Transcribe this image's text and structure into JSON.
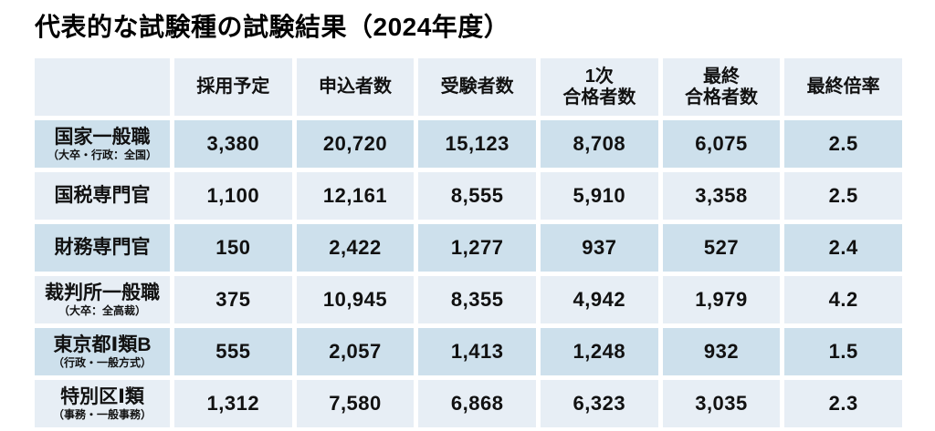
{
  "title": "代表的な試験種の試験結果（2024年度）",
  "colors": {
    "row_dark": "#cde0ec",
    "row_light": "#e7eef5",
    "gap": "#ffffff",
    "text": "#111111"
  },
  "chart_data": {
    "type": "table",
    "title": "代表的な試験種の試験結果（2024年度）",
    "columns": [
      "採用予定",
      "申込者数",
      "受験者数",
      "1次\n合格者数",
      "最終\n合格者数",
      "最終倍率"
    ],
    "rows": [
      {
        "name": "国家一般職",
        "sub": "（大卒・行政：全国）",
        "values": [
          "3,380",
          "20,720",
          "15,123",
          "8,708",
          "6,075",
          "2.5"
        ]
      },
      {
        "name": "国税専門官",
        "sub": "",
        "values": [
          "1,100",
          "12,161",
          "8,555",
          "5,910",
          "3,358",
          "2.5"
        ]
      },
      {
        "name": "財務専門官",
        "sub": "",
        "values": [
          "150",
          "2,422",
          "1,277",
          "937",
          "527",
          "2.4"
        ]
      },
      {
        "name": "裁判所一般職",
        "sub": "（大卒：全高裁）",
        "values": [
          "375",
          "10,945",
          "8,355",
          "4,942",
          "1,979",
          "4.2"
        ]
      },
      {
        "name": "東京都Ⅰ類B",
        "sub": "（行政・一般方式）",
        "values": [
          "555",
          "2,057",
          "1,413",
          "1,248",
          "932",
          "1.5"
        ]
      },
      {
        "name": "特別区Ⅰ類",
        "sub": "（事務・一般事務）",
        "values": [
          "1,312",
          "7,580",
          "6,868",
          "6,323",
          "3,035",
          "2.3"
        ]
      }
    ]
  }
}
